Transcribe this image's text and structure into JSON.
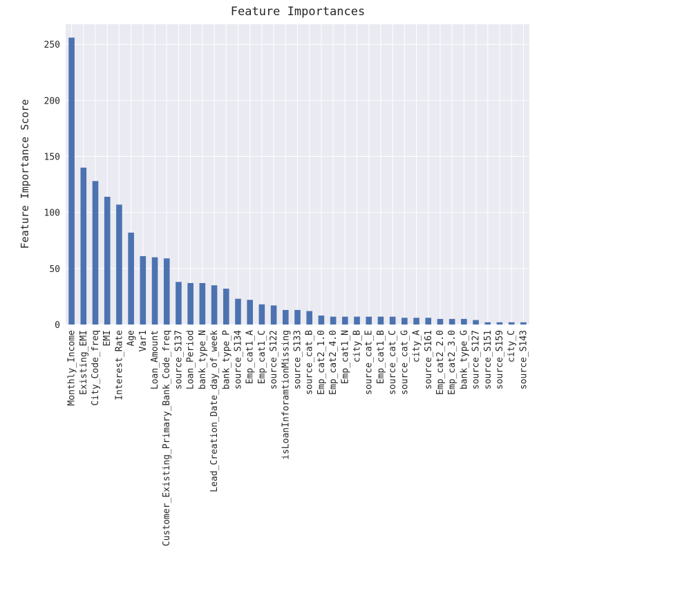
{
  "chart_data": {
    "type": "bar",
    "title": "Feature Importances",
    "xlabel": "",
    "ylabel": "Feature Importance Score",
    "ylim": [
      0,
      268
    ],
    "yticks": [
      0,
      50,
      100,
      150,
      200,
      250
    ],
    "grid": true,
    "colors": {
      "bar": "#4c72b0",
      "plot_background": "#eaeaf2",
      "grid": "#ffffff"
    },
    "categories": [
      "Monthly_Income",
      "Existing_EMI",
      "City_Code_freq",
      "EMI",
      "Interest_Rate",
      "Age",
      "Var1",
      "Loan_Amount",
      "Customer_Existing_Primary_Bank_Code_freq",
      "source_S137",
      "Loan_Period",
      "bank_type_N",
      "Lead_Creation_Date_day_of_week",
      "bank_type_P",
      "source_S134",
      "Emp_cat1_A",
      "Emp_cat1_C",
      "source_S122",
      "isLoanInforamtionMissing",
      "source_S133",
      "source_cat_B",
      "Emp_cat2_1.0",
      "Emp_cat2_4.0",
      "Emp_cat1_N",
      "city_B",
      "source_cat_E",
      "Emp_cat1_B",
      "source_cat_C",
      "source_cat_G",
      "city_A",
      "source_S161",
      "Emp_cat2_2.0",
      "Emp_cat2_3.0",
      "bank_type_G",
      "source_S127",
      "source_S151",
      "source_S159",
      "city_C",
      "source_S143"
    ],
    "values": [
      256,
      140,
      128,
      114,
      107,
      82,
      61,
      60,
      59,
      38,
      37,
      37,
      35,
      32,
      23,
      22,
      18,
      17,
      13,
      13,
      12,
      8,
      7,
      7,
      7,
      7,
      7,
      7,
      6,
      6,
      6,
      5,
      5,
      5,
      4,
      2,
      2,
      2,
      2
    ]
  }
}
